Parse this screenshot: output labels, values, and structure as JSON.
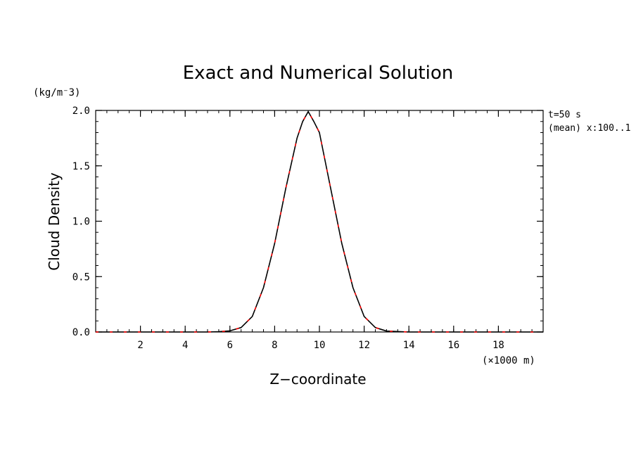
{
  "chart_data": {
    "type": "line",
    "title": "Exact and Numerical Solution",
    "xlabel": "Z−coordinate",
    "xunit": "(×1000 m)",
    "ylabel": "Cloud Density",
    "yunit": "(kg/m⁻3)",
    "annotations": [
      "t=50 s",
      "(mean) x:100..1"
    ],
    "xlim": [
      0,
      20
    ],
    "ylim": [
      0,
      2.0
    ],
    "xticks": [
      "2",
      "4",
      "6",
      "8",
      "10",
      "12",
      "14",
      "16",
      "18"
    ],
    "yticks": [
      "0.0",
      "0.5",
      "1.0",
      "1.5",
      "2.0"
    ],
    "grid": false,
    "series": [
      {
        "style": "solid",
        "color": "#000000",
        "x": [
          0,
          1,
          2,
          3,
          4,
          5,
          5.5,
          6,
          6.5,
          7,
          7.5,
          8,
          8.5,
          9,
          9.25,
          9.5,
          9.75,
          10,
          10.5,
          11,
          11.5,
          12,
          12.5,
          13,
          14,
          15,
          16,
          17,
          18,
          19,
          20
        ],
        "y": [
          0,
          0,
          0,
          0,
          0,
          0,
          0.003,
          0.01,
          0.04,
          0.14,
          0.4,
          0.8,
          1.3,
          1.75,
          1.9,
          1.99,
          1.9,
          1.8,
          1.3,
          0.8,
          0.4,
          0.14,
          0.04,
          0.008,
          0,
          0,
          0,
          0,
          0,
          0,
          0
        ]
      },
      {
        "style": "dashed",
        "color": "#ff0000",
        "x": [
          0,
          1,
          2,
          3,
          4,
          5,
          5.5,
          6,
          6.5,
          7,
          7.5,
          8,
          8.5,
          9,
          9.25,
          9.5,
          9.75,
          10,
          10.5,
          11,
          11.5,
          12,
          12.5,
          13,
          14,
          15,
          16,
          17,
          18,
          19,
          20
        ],
        "y": [
          0,
          0,
          0,
          0,
          0,
          0,
          0.003,
          0.01,
          0.04,
          0.14,
          0.4,
          0.8,
          1.3,
          1.75,
          1.9,
          1.99,
          1.9,
          1.8,
          1.3,
          0.8,
          0.4,
          0.14,
          0.04,
          0.008,
          0,
          0,
          0,
          0,
          0,
          0,
          0
        ]
      }
    ]
  }
}
